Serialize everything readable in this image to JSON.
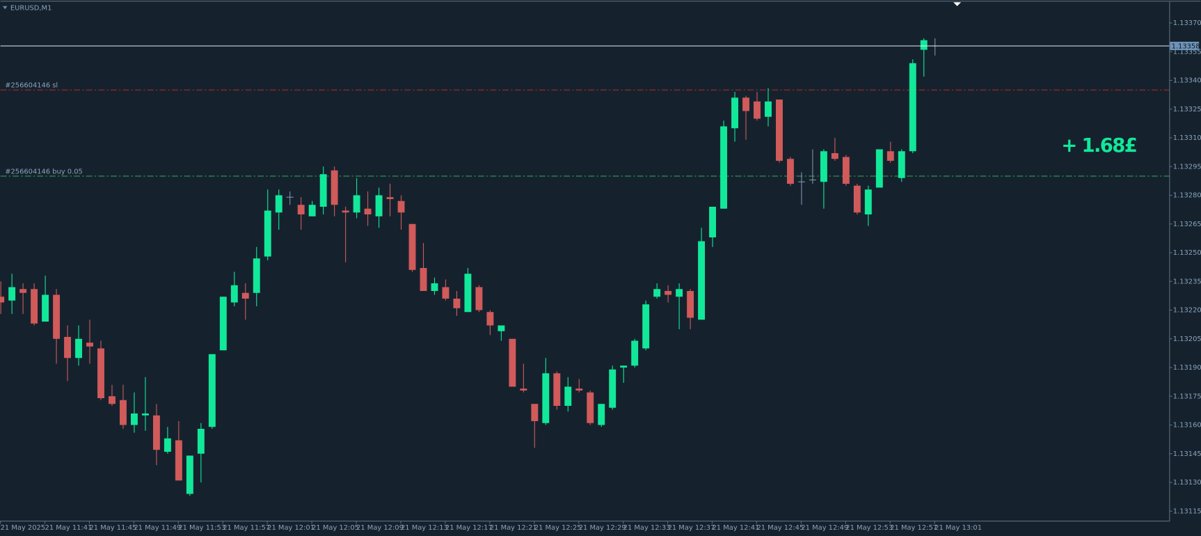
{
  "chart_data": {
    "type": "candlestick",
    "title": "EURUSD,M1",
    "categories": [
      "21 May 2025",
      null,
      null,
      null,
      "21 May 11:41",
      null,
      null,
      null,
      "21 May 11:45",
      null,
      null,
      null,
      "21 May 11:49",
      null,
      null,
      null,
      "21 May 11:53",
      null,
      null,
      null,
      "21 May 11:57",
      null,
      null,
      null,
      "21 May 12:01",
      null,
      null,
      null,
      "21 May 12:05",
      null,
      null,
      null,
      "21 May 12:09",
      null,
      null,
      null,
      "21 May 12:13",
      null,
      null,
      null,
      "21 May 12:17",
      null,
      null,
      null,
      "21 May 12:21",
      null,
      null,
      null,
      "21 May 12:25",
      null,
      null,
      null,
      "21 May 12:29",
      null,
      null,
      null,
      "21 May 12:33",
      null,
      null,
      null,
      "21 May 12:37",
      null,
      null,
      null,
      "21 May 12:41",
      null,
      null,
      null,
      "21 May 12:45",
      null,
      null,
      null,
      "21 May 12:49",
      null,
      null,
      null,
      "21 May 12:53",
      null,
      null,
      null,
      "21 May 12:57",
      null,
      null,
      null,
      "21 May 13:01"
    ],
    "open": [
      1.13227,
      1.13225,
      1.13231,
      1.13231,
      1.13214,
      1.13228,
      1.13206,
      1.13195,
      1.13203,
      1.132,
      1.13175,
      1.13173,
      1.1316,
      1.13165,
      1.13165,
      1.13146,
      1.13152,
      1.13124,
      1.13145,
      1.13159,
      1.13199,
      1.13224,
      1.13229,
      1.13229,
      1.13248,
      1.13271,
      1.13279,
      1.13275,
      1.13269,
      1.13274,
      1.13293,
      1.13272,
      1.13271,
      1.13273,
      1.13269,
      1.13279,
      1.13277,
      1.13265,
      1.13242,
      1.1323,
      1.13232,
      1.13226,
      1.13219,
      1.13232,
      1.13219,
      1.13209,
      1.13205,
      1.13179,
      1.13171,
      1.13161,
      1.13187,
      1.1317,
      1.13179,
      1.13177,
      1.1316,
      1.13169,
      1.1319,
      1.13191,
      1.132,
      1.13227,
      1.1323,
      1.13227,
      1.1323,
      1.13215,
      1.13258,
      1.13273,
      1.13315,
      1.13331,
      1.13329,
      1.13321,
      1.1333,
      1.13299,
      1.13287,
      1.13288,
      1.13287,
      1.13302,
      1.133,
      1.13285,
      1.1327,
      1.13284,
      1.13303,
      1.13289,
      1.13303,
      1.13356,
      1.13358
    ],
    "high": [
      1.13235,
      1.13239,
      1.13234,
      1.13234,
      1.13238,
      1.13231,
      1.13212,
      1.13212,
      1.13215,
      1.13204,
      1.13181,
      1.13181,
      1.13177,
      1.13185,
      1.13171,
      1.13159,
      1.13162,
      1.13144,
      1.13161,
      1.13197,
      1.13227,
      1.1324,
      1.13234,
      1.13253,
      1.13283,
      1.13283,
      1.13282,
      1.13279,
      1.13277,
      1.13295,
      1.13295,
      1.13274,
      1.13289,
      1.13282,
      1.13284,
      1.13286,
      1.1328,
      1.13265,
      1.13255,
      1.13237,
      1.13236,
      1.1323,
      1.13242,
      1.13233,
      1.1322,
      1.13212,
      1.13205,
      1.13192,
      1.13171,
      1.13195,
      1.13188,
      1.13185,
      1.13184,
      1.13178,
      1.13171,
      1.13191,
      1.13191,
      1.13205,
      1.13225,
      1.13234,
      1.13233,
      1.13234,
      1.13231,
      1.13263,
      1.13274,
      1.13319,
      1.13334,
      1.13332,
      1.13334,
      1.13336,
      1.1333,
      1.133,
      1.13292,
      1.13304,
      1.13304,
      1.1331,
      1.13301,
      1.13286,
      1.13285,
      1.13304,
      1.13308,
      1.13304,
      1.13351,
      1.13362,
      1.13362
    ],
    "low": [
      1.13218,
      1.13218,
      1.13218,
      1.13212,
      1.13214,
      1.13192,
      1.13183,
      1.13191,
      1.13192,
      1.13173,
      1.1317,
      1.13158,
      1.13156,
      1.13157,
      1.13139,
      1.13145,
      1.13131,
      1.13123,
      1.1313,
      1.13158,
      1.13199,
      1.13222,
      1.13215,
      1.13222,
      1.13246,
      1.13262,
      1.13275,
      1.13262,
      1.13269,
      1.1327,
      1.13269,
      1.13245,
      1.13268,
      1.13264,
      1.13263,
      1.13269,
      1.13262,
      1.1324,
      1.1323,
      1.13228,
      1.13225,
      1.13217,
      1.13219,
      1.13219,
      1.13207,
      1.13204,
      1.1318,
      1.13177,
      1.13148,
      1.1316,
      1.13168,
      1.13167,
      1.13177,
      1.1316,
      1.13159,
      1.13168,
      1.13182,
      1.1319,
      1.13199,
      1.13226,
      1.13224,
      1.1321,
      1.1321,
      1.13215,
      1.13253,
      1.13273,
      1.13308,
      1.13309,
      1.13319,
      1.13316,
      1.13297,
      1.13285,
      1.13275,
      1.13286,
      1.13273,
      1.13298,
      1.13285,
      1.1327,
      1.13264,
      1.13284,
      1.13297,
      1.13287,
      1.13302,
      1.13342,
      1.13353
    ],
    "close": [
      1.13224,
      1.13232,
      1.13229,
      1.13213,
      1.13228,
      1.13205,
      1.13195,
      1.13205,
      1.13201,
      1.13174,
      1.13171,
      1.1316,
      1.13166,
      1.13166,
      1.13147,
      1.13153,
      1.13131,
      1.13144,
      1.13158,
      1.13197,
      1.13227,
      1.13233,
      1.13226,
      1.13247,
      1.13272,
      1.1328,
      1.13279,
      1.1327,
      1.13275,
      1.13291,
      1.13275,
      1.13271,
      1.1328,
      1.1327,
      1.1328,
      1.13278,
      1.13271,
      1.13241,
      1.1323,
      1.13234,
      1.13226,
      1.13221,
      1.13239,
      1.1322,
      1.13212,
      1.13212,
      1.1318,
      1.13178,
      1.13162,
      1.13187,
      1.1317,
      1.1318,
      1.13178,
      1.13161,
      1.13171,
      1.13189,
      1.13191,
      1.13204,
      1.13223,
      1.13231,
      1.13228,
      1.13231,
      1.13216,
      1.13256,
      1.13274,
      1.13316,
      1.13331,
      1.13324,
      1.1332,
      1.13329,
      1.13298,
      1.13286,
      1.13287,
      1.13288,
      1.13303,
      1.13299,
      1.13286,
      1.13271,
      1.13283,
      1.13304,
      1.13298,
      1.13303,
      1.13349,
      1.13361,
      1.13358
    ],
    "up_color": "#12e89a",
    "down_color": "#d15a5a",
    "doji_color": "#7f93a8",
    "ylim": [
      1.1311,
      1.13382
    ],
    "yticks": [
      {
        "value": 1.1337,
        "label": "1.13370"
      },
      1.13355,
      {
        "value": 1.1334,
        "label": "1.13340"
      },
      1.13325,
      {
        "value": 1.1331,
        "label": "1.13310"
      },
      1.13295,
      {
        "value": 1.1328,
        "label": "1.13280"
      },
      1.13265,
      {
        "value": 1.1325,
        "label": "1.13250"
      },
      1.13235,
      {
        "value": 1.1322,
        "label": "1.13220"
      },
      1.13205,
      {
        "value": 1.1319,
        "label": "1.13190"
      },
      1.13175,
      {
        "value": 1.1316,
        "label": "1.13160"
      },
      1.13145,
      {
        "value": 1.1313,
        "label": "1.13130"
      },
      1.13115
    ],
    "grid": false,
    "current_price": 1.13358,
    "levels": [
      {
        "name": "#256604146 sl",
        "value": 1.13335,
        "color": "#c4252c"
      },
      {
        "name": "#256604146 buy 0.05",
        "value": 1.1329,
        "color": "#2fae52"
      }
    ],
    "annotation": "+ 1.68£"
  }
}
